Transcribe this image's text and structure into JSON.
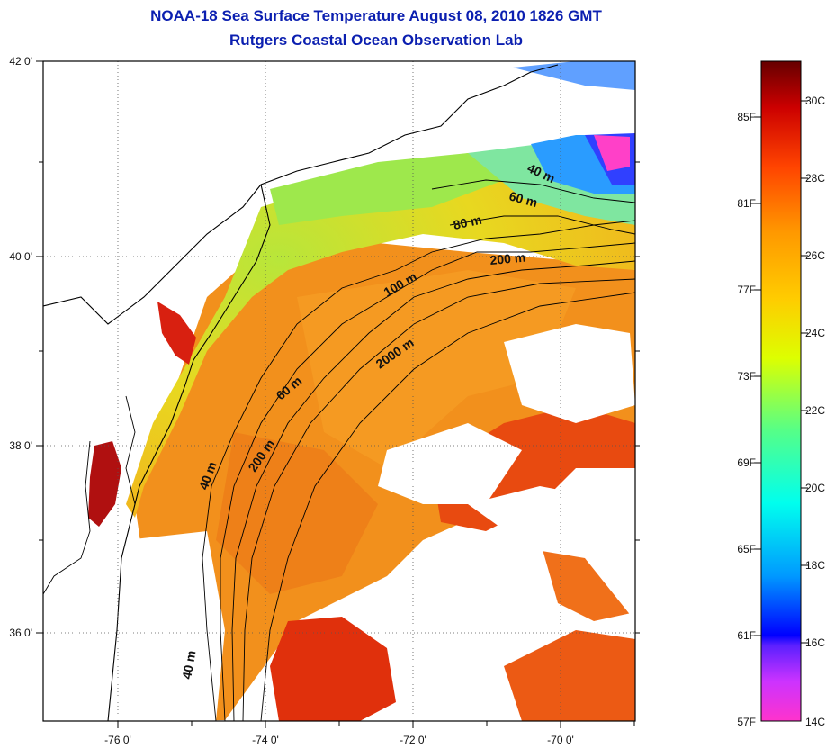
{
  "title_line1": "NOAA-18 Sea Surface Temperature August 08, 2010 1826 GMT",
  "title_line2": "Rutgers Coastal Ocean Observation Lab",
  "map": {
    "lon_ticks": [
      {
        "value": -76,
        "label": "-76 0'"
      },
      {
        "value": -74,
        "label": "-74 0'"
      },
      {
        "value": -72,
        "label": "-72 0'"
      },
      {
        "value": -70,
        "label": "-70 0'"
      }
    ],
    "lat_ticks": [
      {
        "value": 42,
        "label": "42 0'"
      },
      {
        "value": 40,
        "label": "40 0'"
      },
      {
        "value": 38,
        "label": "38 0'"
      },
      {
        "value": 36,
        "label": "36 0'"
      }
    ],
    "contour_labels": [
      "40 m",
      "60 m",
      "80 m",
      "200 m",
      "100 m",
      "2000 m",
      "60 m",
      "200 m",
      "40 m",
      "40 m"
    ]
  },
  "colorbar": {
    "fahrenheit": [
      "85F",
      "81F",
      "77F",
      "73F",
      "69F",
      "65F",
      "61F",
      "57F"
    ],
    "celsius": [
      "30C",
      "28C",
      "26C",
      "24C",
      "22C",
      "20C",
      "18C",
      "16C",
      "14C"
    ],
    "colors": [
      "#ff33cc",
      "#9933ff",
      "#0000ff",
      "#0099ff",
      "#00ffee",
      "#55ff88",
      "#ccff00",
      "#ffee00",
      "#ffaa00",
      "#ff5500",
      "#ee0000",
      "#990000",
      "#6b0000"
    ]
  }
}
